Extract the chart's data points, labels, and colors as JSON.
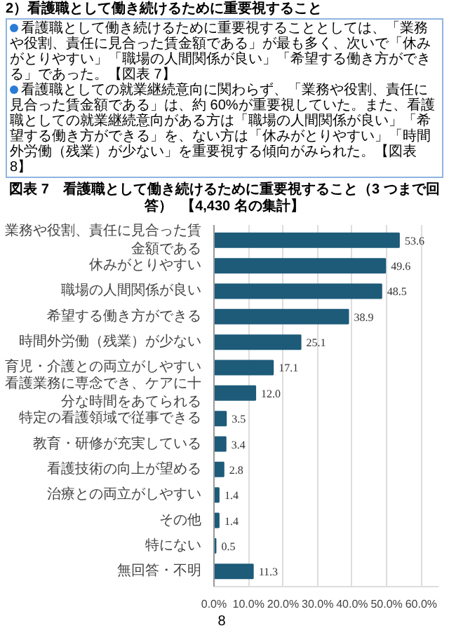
{
  "chart_data": {
    "type": "bar",
    "orientation": "horizontal",
    "title": "図表 7　看護職として働き続けるために重要視すること（3 つまで回答）",
    "subtitle": "【4,430 名の集計】",
    "annotations": [
      "2）看護職として働き続けるために重要視すること",
      "看護職として働き続けるために重要視することとしては、「業務や役割、責任に見合った賃金額である」が最も多く、次いで「休みがとりやすい」「職場の人間関係が良い」「希望する働き方ができる」であった。【図表 7】",
      "看護職としての就業継続意向に関わらず、「業務や役割、責任に見合った賃金額である」は、約 60%が重要視していた。また、看護職としての就業継続意向がある方は「職場の人間関係が良い」「希望する働き方ができる」を、ない方は「休みがとりやすい」「時間外労働（残業）が少ない」を重要視する傾向がみられた。【図表 8】",
      "8"
    ],
    "categories": [
      "業務や役割、責任に見合った賃金額である",
      "休みがとりやすい",
      "職場の人間関係が良い",
      "希望する働き方ができる",
      "時間外労働（残業）が少ない",
      "育児・介護との両立がしやすい",
      "看護業務に専念でき、ケアに十分な時間をあてられる",
      "特定の看護領域で従事できる",
      "教育・研修が充実している",
      "看護技術の向上が望める",
      "治療との両立がしやすい",
      "その他",
      "特にない",
      "無回答・不明"
    ],
    "values": [
      53.6,
      49.6,
      48.5,
      38.9,
      25.1,
      17.1,
      12.0,
      3.5,
      3.4,
      2.8,
      1.4,
      1.4,
      0.5,
      11.3
    ],
    "color": "#1d5b79",
    "xlim": [
      0,
      65
    ],
    "xticks": [
      {
        "value": 0,
        "label": "0.0%"
      },
      {
        "value": 10,
        "label": "10.0%"
      },
      {
        "value": 20,
        "label": "20.0%"
      },
      {
        "value": 30,
        "label": "30.0%"
      },
      {
        "value": 40,
        "label": "40.0%"
      },
      {
        "value": 50,
        "label": "50.0%"
      },
      {
        "value": 60,
        "label": "60.0%"
      }
    ],
    "grid": "x",
    "value_labels": [
      "53.6",
      "49.6",
      "48.5",
      "38.9",
      "25.1",
      "17.1",
      "12.0",
      "3.5",
      "3.4",
      "2.8",
      "1.4",
      "1.4",
      "0.5",
      "11.3"
    ]
  }
}
